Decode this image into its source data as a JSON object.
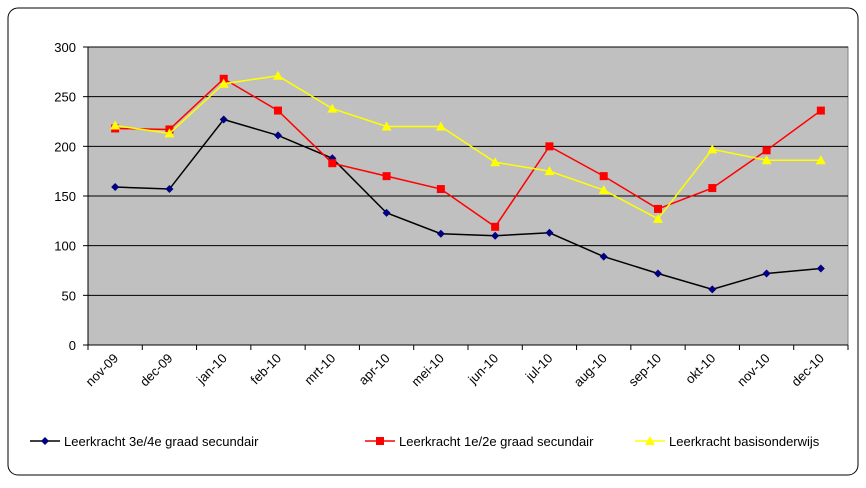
{
  "chart_data": {
    "type": "line",
    "categories": [
      "nov-09",
      "dec-09",
      "jan-10",
      "feb-10",
      "mrt-10",
      "apr-10",
      "mei-10",
      "jun-10",
      "jul-10",
      "aug-10",
      "sep-10",
      "okt-10",
      "nov-10",
      "dec-10"
    ],
    "series": [
      {
        "name": "Leerkracht 3e/4e graad secundair",
        "color": "#000080",
        "marker": "diamond",
        "values": [
          159,
          157,
          227,
          211,
          188,
          133,
          112,
          110,
          113,
          89,
          72,
          56,
          72,
          77
        ]
      },
      {
        "name": "Leerkracht 1e/2e graad secundair",
        "color": "#ff0000",
        "marker": "square",
        "values": [
          218,
          217,
          268,
          236,
          183,
          170,
          157,
          119,
          200,
          170,
          137,
          158,
          196,
          236
        ]
      },
      {
        "name": "Leerkracht basisonderwijs",
        "color": "#ffff00",
        "marker": "triangle",
        "values": [
          221,
          213,
          263,
          271,
          238,
          220,
          220,
          184,
          175,
          156,
          127,
          197,
          186,
          186
        ]
      }
    ],
    "ylim": [
      0,
      300
    ],
    "yticks": [
      0,
      50,
      100,
      150,
      200,
      250,
      300
    ],
    "grid": true,
    "legend": "bottom"
  }
}
